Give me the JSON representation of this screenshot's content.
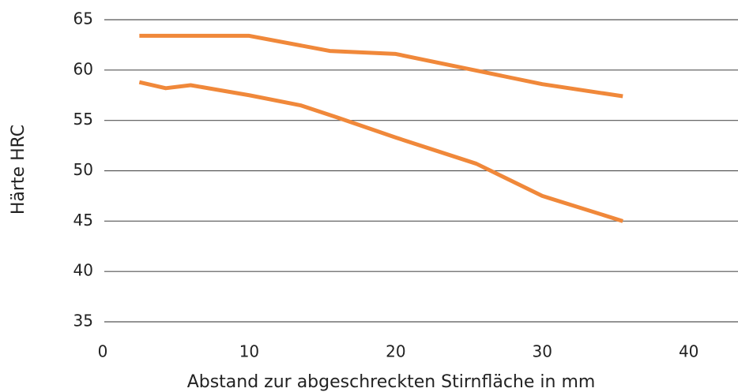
{
  "chart_data": {
    "type": "line",
    "x_label": "Abstand zur abgeschreckten Stirnfläche in mm",
    "y_label": "Härte HRC",
    "xlim": [
      0,
      43.2
    ],
    "xticks": [
      0,
      10,
      20,
      30,
      40
    ],
    "ylim": [
      35,
      65
    ],
    "yticks": [
      35,
      40,
      45,
      50,
      55,
      60,
      65
    ],
    "grid": true,
    "series": [
      {
        "color": "#f0883a",
        "x": [
          2.5,
          10,
          15.5,
          20,
          25,
          30,
          35.5
        ],
        "values": [
          63.4,
          63.4,
          61.9,
          61.6,
          60.1,
          58.6,
          57.4
        ]
      },
      {
        "color": "#f0883a",
        "x": [
          2.5,
          4.3,
          6,
          10,
          13.5,
          16,
          20,
          25.5,
          30,
          35.5
        ],
        "values": [
          58.8,
          58.2,
          58.5,
          57.5,
          56.5,
          55.3,
          53.3,
          50.7,
          47.5,
          45
        ]
      }
    ]
  }
}
